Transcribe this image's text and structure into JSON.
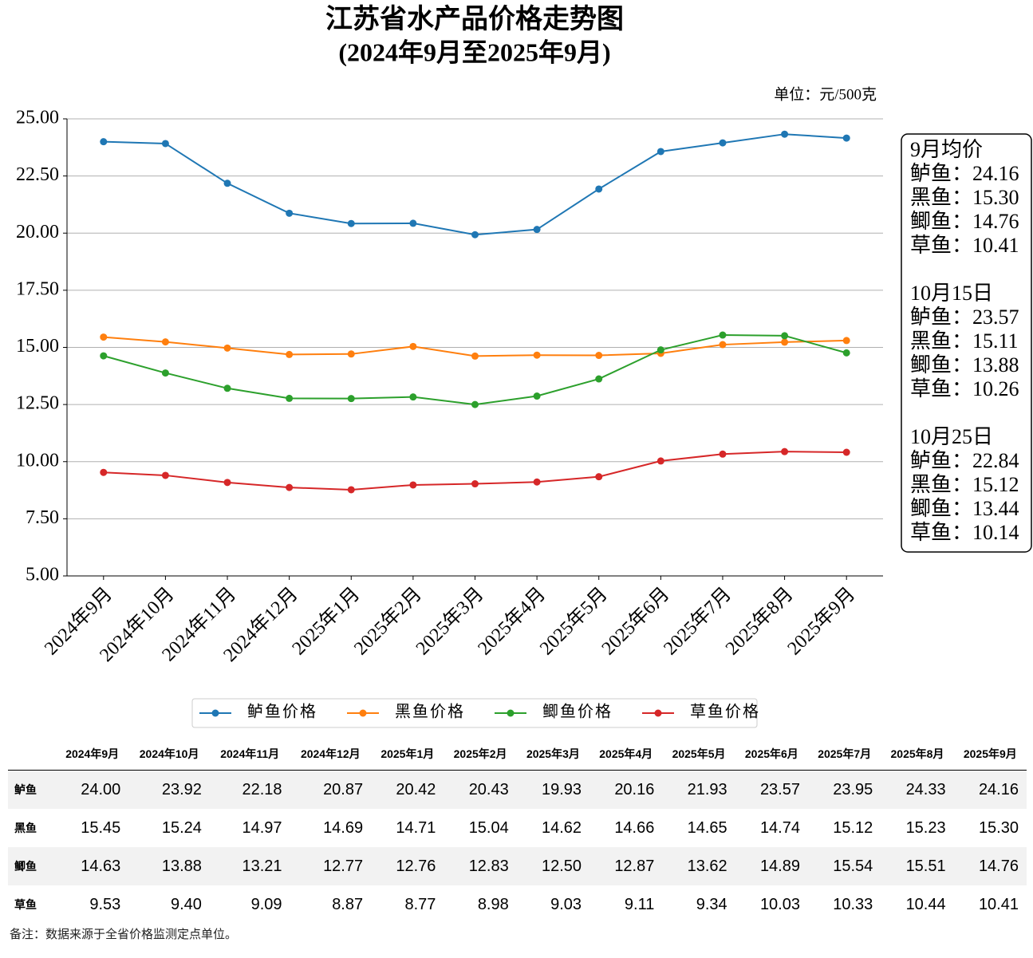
{
  "chart_data": {
    "type": "line",
    "title": "江苏省水产品价格走势图",
    "subtitle": "(2024年9月至2025年9月)",
    "unit_label": "单位：元/500克",
    "categories": [
      "2024年9月",
      "2024年10月",
      "2024年11月",
      "2024年12月",
      "2025年1月",
      "2025年2月",
      "2025年3月",
      "2025年4月",
      "2025年5月",
      "2025年6月",
      "2025年7月",
      "2025年8月",
      "2025年9月"
    ],
    "series": [
      {
        "name": "鲈鱼价格",
        "color": "#1f77b4",
        "values": [
          24.0,
          23.92,
          22.18,
          20.87,
          20.42,
          20.43,
          19.93,
          20.16,
          21.93,
          23.57,
          23.95,
          24.33,
          24.16
        ],
        "value_labels": [
          "24.00",
          "23.92",
          "22.18",
          "20.87",
          "20.42",
          "20.43",
          "19.93",
          "20.16",
          "21.93",
          "23.57",
          "23.95",
          "24.33",
          "24.16"
        ]
      },
      {
        "name": "黑鱼价格",
        "color": "#ff7f0e",
        "values": [
          15.45,
          15.24,
          14.97,
          14.69,
          14.71,
          15.04,
          14.62,
          14.66,
          14.65,
          14.74,
          15.12,
          15.23,
          15.3
        ],
        "value_labels": [
          "15.45",
          "15.24",
          "14.97",
          "14.69",
          "14.71",
          "15.04",
          "14.62",
          "14.66",
          "14.65",
          "14.74",
          "15.12",
          "15.23",
          "15.30"
        ]
      },
      {
        "name": "鲫鱼价格",
        "color": "#2ca02c",
        "values": [
          14.63,
          13.88,
          13.21,
          12.77,
          12.76,
          12.83,
          12.5,
          12.87,
          13.62,
          14.89,
          15.54,
          15.51,
          14.76
        ],
        "value_labels": [
          "14.63",
          "13.88",
          "13.21",
          "12.77",
          "12.76",
          "12.83",
          "12.50",
          "12.87",
          "13.62",
          "14.89",
          "15.54",
          "15.51",
          "14.76"
        ]
      },
      {
        "name": "草鱼价格",
        "color": "#d62728",
        "values": [
          9.53,
          9.4,
          9.09,
          8.87,
          8.77,
          8.98,
          9.03,
          9.11,
          9.34,
          10.03,
          10.33,
          10.44,
          10.41
        ],
        "value_labels": [
          "9.53",
          "9.40",
          "9.09",
          "8.87",
          "8.77",
          "8.98",
          "9.03",
          "9.11",
          "9.34",
          "10.03",
          "10.33",
          "10.44",
          "10.41"
        ]
      }
    ],
    "ylim": [
      5,
      25
    ],
    "yticks": [
      {
        "value": 5,
        "label": "5.00"
      },
      {
        "value": 7.5,
        "label": "7.50"
      },
      {
        "value": 10,
        "label": "10.00"
      },
      {
        "value": 12.5,
        "label": "12.50"
      },
      {
        "value": 15,
        "label": "15.00"
      },
      {
        "value": 17.5,
        "label": "17.50"
      },
      {
        "value": 20,
        "label": "20.00"
      },
      {
        "value": 22.5,
        "label": "22.50"
      },
      {
        "value": 25,
        "label": "25.00"
      }
    ],
    "grid": true,
    "legend": "bottom",
    "annotation": [
      {
        "title": "9月均价",
        "lines": [
          "鲈鱼：24.16",
          "黑鱼：15.30",
          "鲫鱼：14.76",
          "草鱼：10.41"
        ]
      },
      {
        "title": "10月15日",
        "lines": [
          "鲈鱼：23.57",
          "黑鱼：15.11",
          "鲫鱼：13.88",
          "草鱼：10.26"
        ]
      },
      {
        "title": "10月25日",
        "lines": [
          "鲈鱼：22.84",
          "黑鱼：15.12",
          "鲫鱼：13.44",
          "草鱼：10.14"
        ]
      }
    ]
  },
  "table": {
    "row_labels": [
      "鲈鱼",
      "黑鱼",
      "鲫鱼",
      "草鱼"
    ]
  },
  "note": "备注：数据来源于全省价格监测定点单位。"
}
